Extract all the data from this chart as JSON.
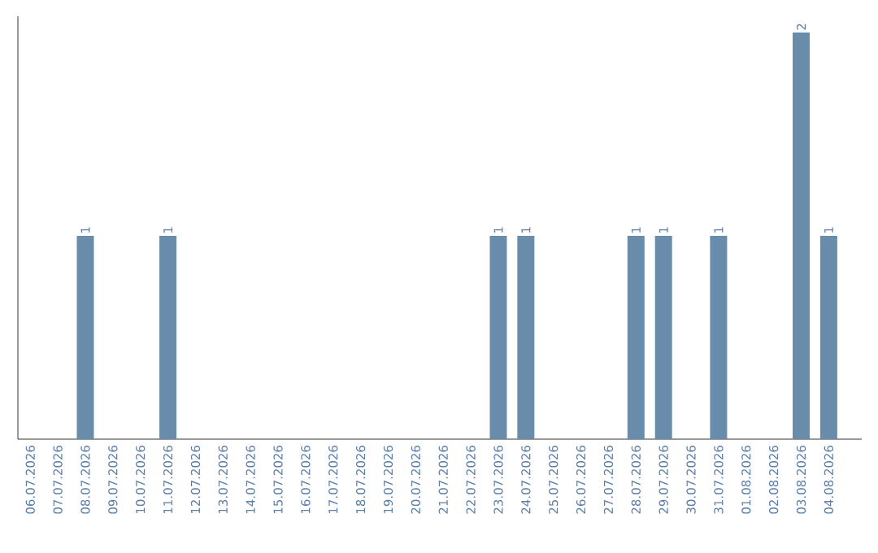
{
  "chart_data": {
    "type": "bar",
    "categories": [
      "06.07.2026",
      "07.07.2026",
      "08.07.2026",
      "09.07.2026",
      "10.07.2026",
      "11.07.2026",
      "12.07.2026",
      "13.07.2026",
      "14.07.2026",
      "15.07.2026",
      "16.07.2026",
      "17.07.2026",
      "18.07.2026",
      "19.07.2026",
      "20.07.2026",
      "21.07.2026",
      "22.07.2026",
      "23.07.2026",
      "24.07.2026",
      "25.07.2026",
      "26.07.2026",
      "27.07.2026",
      "28.07.2026",
      "29.07.2026",
      "30.07.2026",
      "31.07.2026",
      "01.08.2026",
      "02.08.2026",
      "03.08.2026",
      "04.08.2026"
    ],
    "values": [
      0,
      0,
      1,
      0,
      0,
      1,
      0,
      0,
      0,
      0,
      0,
      0,
      0,
      0,
      0,
      0,
      0,
      1,
      1,
      0,
      0,
      0,
      1,
      1,
      0,
      1,
      0,
      0,
      2,
      1
    ],
    "value_labels": [
      null,
      null,
      "1",
      null,
      null,
      "1",
      null,
      null,
      null,
      null,
      null,
      null,
      null,
      null,
      null,
      null,
      null,
      "1",
      "1",
      null,
      null,
      null,
      "1",
      "1",
      null,
      "1",
      null,
      null,
      "2",
      "1"
    ],
    "color": "#6a8cab"
  }
}
